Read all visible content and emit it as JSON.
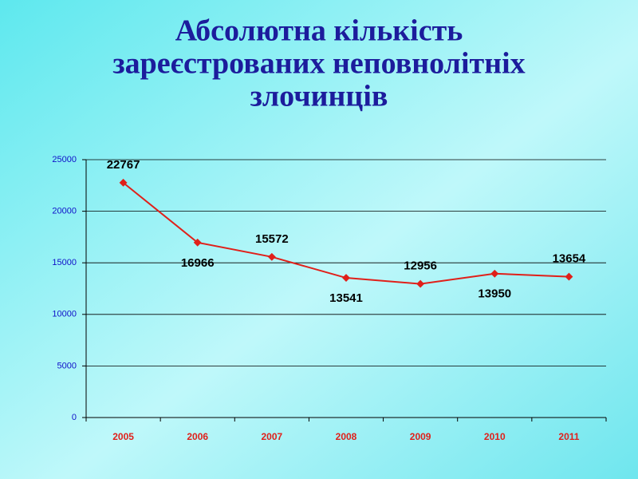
{
  "chart_data": {
    "type": "line",
    "title": [
      "Абсолютна кількість",
      "зареєстрованих неповнолітніх",
      "злочинців"
    ],
    "categories": [
      "2005",
      "2006",
      "2007",
      "2008",
      "2009",
      "2010",
      "2011"
    ],
    "series": [
      {
        "color": "#e0201a",
        "values": [
          22767,
          16966,
          15572,
          13541,
          12956,
          13950,
          13654
        ]
      }
    ],
    "ylim": [
      0,
      25000
    ],
    "yticks": [
      0,
      5000,
      10000,
      15000,
      20000,
      25000
    ],
    "grid": true
  }
}
